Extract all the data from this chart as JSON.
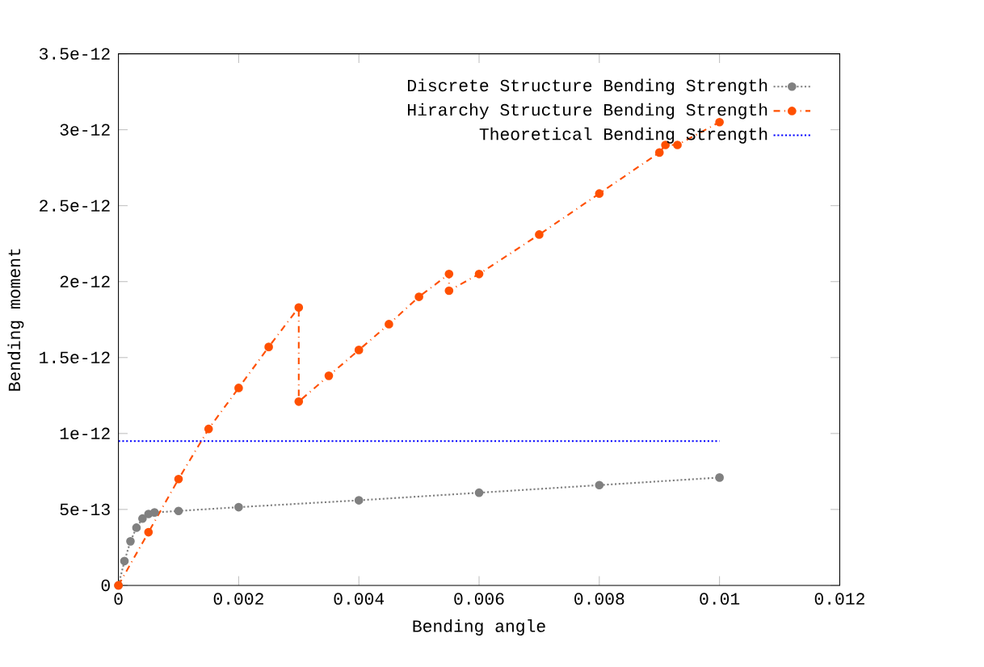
{
  "chart_data": {
    "type": "line",
    "xlabel": "Bending angle",
    "ylabel": "Bending moment",
    "xlim": [
      0,
      0.012
    ],
    "ylim": [
      0,
      3.5e-12
    ],
    "xticks": [
      0,
      0.002,
      0.004,
      0.006,
      0.008,
      0.01,
      0.012
    ],
    "yticks": [
      0,
      {
        "value": 5e-13,
        "label": "5e-13"
      },
      {
        "value": 1e-12,
        "label": "1e-12"
      },
      {
        "value": 1.5e-12,
        "label": "1.5e-12"
      },
      {
        "value": 2e-12,
        "label": "2e-12"
      },
      {
        "value": 2.5e-12,
        "label": "2.5e-12"
      },
      {
        "value": 3e-12,
        "label": "3e-12"
      },
      {
        "value": 3.5e-12,
        "label": "3.5e-12"
      }
    ],
    "legend": "top right",
    "grid": false,
    "series": [
      {
        "name": "Discrete Structure Bending Strength",
        "color": "#808080",
        "marker": "circle",
        "line_style": "dotted",
        "x": [
          0,
          0.0001,
          0.0002,
          0.0003,
          0.0004,
          0.0005,
          0.0006,
          0.001,
          0.002,
          0.004,
          0.006,
          0.008,
          0.01
        ],
        "values": [
          0,
          1.6e-13,
          2.9e-13,
          3.8e-13,
          4.4e-13,
          4.7e-13,
          4.8e-13,
          4.9e-13,
          5.15e-13,
          5.6e-13,
          6.1e-13,
          6.6e-13,
          7.1e-13
        ]
      },
      {
        "name": "Hirarchy Structure Bending Strength",
        "color": "#ff5000",
        "marker": "circle",
        "line_style": "dashed",
        "x": [
          0,
          0.0005,
          0.001,
          0.0015,
          0.002,
          0.0025,
          0.003,
          0.003,
          0.0035,
          0.004,
          0.0045,
          0.005,
          0.0055,
          0.0055,
          0.006,
          0.007,
          0.008,
          0.009,
          0.0091,
          0.0093,
          0.01
        ],
        "values": [
          0,
          3.5e-13,
          7e-13,
          1.03e-12,
          1.3e-12,
          1.57e-12,
          1.83e-12,
          1.21e-12,
          1.38e-12,
          1.55e-12,
          1.72e-12,
          1.9e-12,
          2.05e-12,
          1.94e-12,
          2.05e-12,
          2.31e-12,
          2.58e-12,
          2.85e-12,
          2.9e-12,
          2.9e-12,
          3.05e-12
        ]
      },
      {
        "name": "Theoretical Bending Strength",
        "color": "#0000ff",
        "marker": "none",
        "line_style": "dotted",
        "x": [
          0,
          0.01
        ],
        "values": [
          9.5e-13,
          9.5e-13
        ]
      }
    ]
  }
}
